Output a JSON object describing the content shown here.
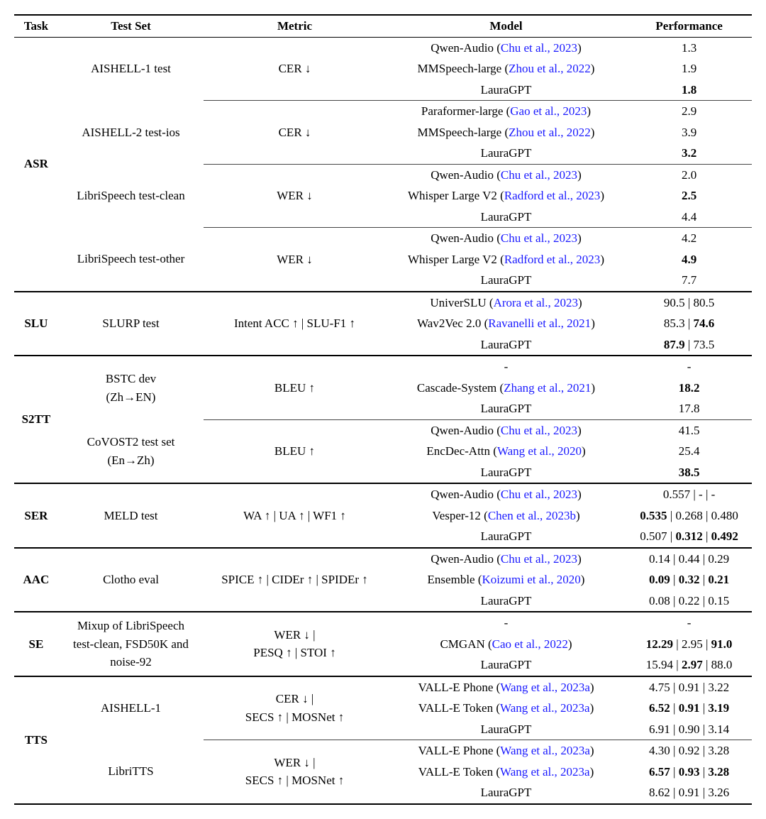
{
  "header": {
    "task": "Task",
    "testset": "Test Set",
    "metric": "Metric",
    "model": "Model",
    "perf": "Performance"
  },
  "colors": {
    "bg": "#ffffff",
    "text": "#000000",
    "cite": "#1a1aff",
    "rule": "#000000",
    "sub_rule": "#444444"
  },
  "arrows": {
    "up": "↑",
    "down": "↓"
  },
  "rows": [
    {
      "type": "task-start",
      "task": "ASR",
      "testset": "AISHELL-1 test",
      "metric": "CER ↓",
      "model": "Qwen-Audio (",
      "cite": "Chu et al., 2023",
      "model_tail": ")",
      "perf": "1.3"
    },
    {
      "type": "cont",
      "model": "MMSpeech-large (",
      "cite": "Zhou et al., 2022",
      "model_tail": ")",
      "perf": "1.9"
    },
    {
      "type": "cont",
      "model": "LauraGPT",
      "perf": "1.8",
      "perf_b": "1"
    },
    {
      "type": "sub",
      "testset": "AISHELL-2 test-ios",
      "metric": "CER ↓",
      "model": "Paraformer-large (",
      "cite": "Gao et al., 2023",
      "model_tail": ")",
      "perf": "2.9"
    },
    {
      "type": "cont",
      "model": "MMSpeech-large (",
      "cite": "Zhou et al., 2022",
      "model_tail": ")",
      "perf": "3.9"
    },
    {
      "type": "cont",
      "model": "LauraGPT",
      "perf": "3.2",
      "perf_b": "1"
    },
    {
      "type": "sub",
      "testset": "LibriSpeech test-clean",
      "metric": "WER ↓",
      "model": "Qwen-Audio (",
      "cite": "Chu et al., 2023",
      "model_tail": ")",
      "perf": "2.0"
    },
    {
      "type": "cont",
      "model": "Whisper Large V2 (",
      "cite": "Radford et al., 2023",
      "model_tail": ")",
      "perf": "2.5",
      "perf_b": "1"
    },
    {
      "type": "cont",
      "model": "LauraGPT",
      "perf": "4.4"
    },
    {
      "type": "sub",
      "testset": "LibriSpeech test-other",
      "metric": "WER ↓",
      "model": "Qwen-Audio (",
      "cite": "Chu et al., 2023",
      "model_tail": ")",
      "perf": "4.2"
    },
    {
      "type": "cont",
      "model": "Whisper Large V2 (",
      "cite": "Radford et al., 2023",
      "model_tail": ")",
      "perf": "4.9",
      "perf_b": "1"
    },
    {
      "type": "cont",
      "model": "LauraGPT",
      "perf": "7.7"
    },
    {
      "type": "task-start",
      "task": "SLU",
      "testset": "SLURP test",
      "metric": "Intent ACC ↑ | SLU-F1 ↑",
      "model": "UniverSLU (",
      "cite": "Arora et al., 2023",
      "model_tail": ")",
      "perf": "90.5 | 80.5"
    },
    {
      "type": "cont",
      "model": "Wav2Vec 2.0 (",
      "cite": "Ravanelli et al., 2021",
      "model_tail": ")",
      "perf_html": "85.3 | <span class='b'>74.6</span>"
    },
    {
      "type": "cont",
      "model": "LauraGPT",
      "perf_html": "<span class='b'>87.9</span> | 73.5"
    },
    {
      "type": "task-start",
      "task": "S2TT",
      "testset_html": "BSTC dev<br>(Zh→EN)",
      "metric": "BLEU ↑",
      "model": "-",
      "perf": "-",
      "task_rows": 6
    },
    {
      "type": "cont",
      "model": "Cascade-System (",
      "cite": "Zhang et al., 2021",
      "model_tail": ")",
      "perf": "18.2",
      "perf_b": "1"
    },
    {
      "type": "cont",
      "model": "LauraGPT",
      "perf": "17.8"
    },
    {
      "type": "sub",
      "testset_html": "CoVOST2 test set<br>(En→Zh)",
      "metric": "BLEU ↑",
      "model": "Qwen-Audio (",
      "cite": "Chu et al., 2023",
      "model_tail": ")",
      "perf": "41.5"
    },
    {
      "type": "cont",
      "model": "EncDec-Attn (",
      "cite": "Wang et al., 2020",
      "model_tail": ")",
      "perf": "25.4"
    },
    {
      "type": "cont",
      "model": "LauraGPT",
      "perf": "38.5",
      "perf_b": "1"
    },
    {
      "type": "task-start",
      "task": "SER",
      "testset": "MELD test",
      "metric": "WA ↑ | UA ↑ | WF1 ↑",
      "model": "Qwen-Audio (",
      "cite": "Chu et al., 2023",
      "model_tail": ")",
      "perf": "0.557 | - | -"
    },
    {
      "type": "cont",
      "model": "Vesper-12 (",
      "cite": "Chen et al., 2023b",
      "model_tail": ")",
      "perf_html": "<span class='b'>0.535</span> | 0.268 | 0.480"
    },
    {
      "type": "cont",
      "model": "LauraGPT",
      "perf_html": "0.507 | <span class='b'>0.312</span> | <span class='b'>0.492</span>"
    },
    {
      "type": "task-start",
      "task": "AAC",
      "testset": "Clotho eval",
      "metric": "SPICE ↑ | CIDEr ↑ | SPIDEr ↑",
      "model": "Qwen-Audio (",
      "cite": "Chu et al., 2023",
      "model_tail": ")",
      "perf": "0.14 | 0.44 | 0.29"
    },
    {
      "type": "cont",
      "model": "Ensemble (",
      "cite": "Koizumi et al., 2020",
      "model_tail": ")",
      "perf_html": "<span class='b'>0.09</span> | <span class='b'>0.32</span> | <span class='b'>0.21</span>"
    },
    {
      "type": "cont",
      "model": "LauraGPT",
      "perf": "0.08 | 0.22 | 0.15"
    },
    {
      "type": "task-start",
      "task": "SE",
      "testset_html": "Mixup of LibriSpeech<br>test-clean, FSD50K and<br>noise-92",
      "metric_html": "WER ↓ |<br>PESQ ↑ | STOI ↑",
      "model": "-",
      "perf": "-"
    },
    {
      "type": "cont",
      "model": "CMGAN (",
      "cite": "Cao et al., 2022",
      "model_tail": ")",
      "perf_html": "<span class='b'>12.29</span> | 2.95 | <span class='b'>91.0</span>"
    },
    {
      "type": "cont",
      "model": "LauraGPT",
      "perf_html": "15.94 | <span class='b'>2.97</span> | 88.0"
    },
    {
      "type": "task-start",
      "task": "TTS",
      "testset": "AISHELL-1",
      "metric_html": "CER ↓ |<br>SECS ↑ | MOSNet ↑",
      "model": "VALL-E Phone (",
      "cite": "Wang et al., 2023a",
      "model_tail": ")",
      "perf": "4.75 | 0.91 | 3.22",
      "task_rows": 6
    },
    {
      "type": "cont",
      "model": "VALL-E Token (",
      "cite": "Wang et al., 2023a",
      "model_tail": ")",
      "perf_html": "<span class='b'>6.52</span> | <span class='b'>0.91</span> | <span class='b'>3.19</span>"
    },
    {
      "type": "cont",
      "model": "LauraGPT",
      "perf": "6.91 | 0.90 | 3.14"
    },
    {
      "type": "sub",
      "testset": "LibriTTS",
      "metric_html": "WER ↓ |<br>SECS ↑ | MOSNet ↑",
      "model": "VALL-E Phone (",
      "cite": "Wang et al., 2023a",
      "model_tail": ")",
      "perf": "4.30 | 0.92 | 3.28"
    },
    {
      "type": "cont",
      "model": "VALL-E Token (",
      "cite": "Wang et al., 2023a",
      "model_tail": ")",
      "perf_html": "<span class='b'>6.57</span> | <span class='b'>0.93</span> | <span class='b'>3.28</span>"
    },
    {
      "type": "cont",
      "model": "LauraGPT",
      "perf": "8.62 | 0.91 | 3.26"
    }
  ]
}
